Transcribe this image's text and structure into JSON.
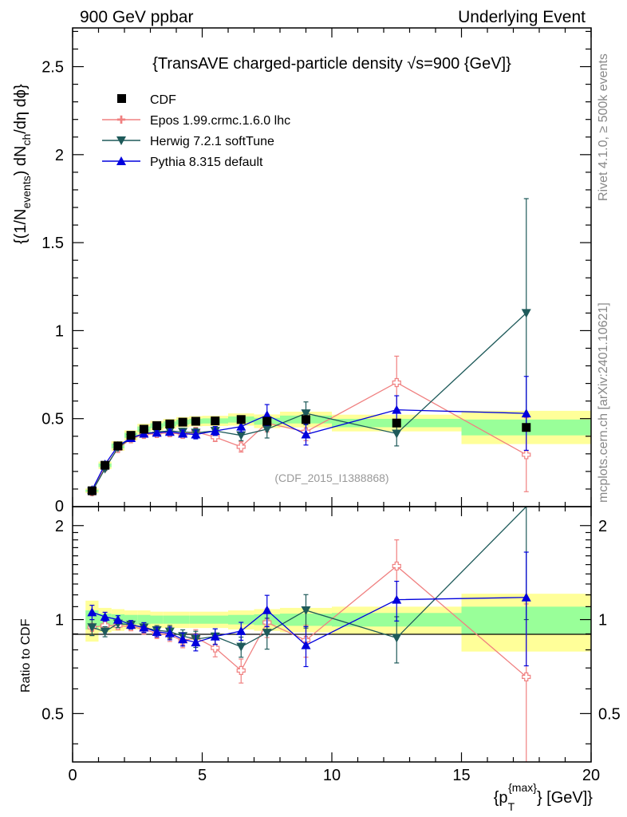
{
  "header": {
    "left": "900 GeV ppbar",
    "right": "Underlying Event"
  },
  "side": {
    "rivet": "Rivet 4.1.0, ≥ 500k events",
    "mcplots": "mcplots.cern.ch [arXiv:2401.10621]"
  },
  "chart_data": {
    "type": "scatter",
    "title": "{TransAVE charged-particle density √s=900 {GeV]}",
    "analysis_label": "(CDF_2015_I1388868)",
    "xlabel": "{p_T^{max}} [GeV]}",
    "xlabel_main": "{p",
    "xlabel_sub": "T",
    "xlabel_sup": "{max}",
    "xlabel_tail": "} [GeV]}",
    "ylabel": "{(1/N_events) dN_ch/dη dϕ}",
    "ylabel_a": "{(1/N",
    "ylabel_sub1": "events",
    "ylabel_b": ") dN",
    "ylabel_sub2": "ch",
    "ylabel_c": "/dη  dϕ}",
    "ratio_ylabel": "Ratio to CDF",
    "xlim": [
      0,
      20
    ],
    "ylim": [
      0,
      2.72
    ],
    "ratio_ylim": [
      0.35,
      2.3
    ],
    "xticks": [
      "0",
      "5",
      "10",
      "15",
      "20"
    ],
    "yticks": [
      "0.5",
      "1",
      "1.5",
      "2",
      "2.5"
    ],
    "ratio_yticks": [
      "0.5",
      "1",
      "2"
    ],
    "legend": [
      "CDF",
      "Epos 1.99.crmc.1.6.0 lhc",
      "Herwig 7.2.1 softTune",
      "Pythia 8.315 default"
    ],
    "x": [
      0.75,
      1.25,
      1.75,
      2.25,
      2.75,
      3.25,
      3.75,
      4.25,
      4.75,
      5.5,
      6.5,
      7.5,
      9.0,
      12.5,
      17.5
    ],
    "bin_edges": [
      0.5,
      1.0,
      1.5,
      2.0,
      2.5,
      3.0,
      3.5,
      4.0,
      4.5,
      5.0,
      6.0,
      7.0,
      8.0,
      10.0,
      15.0,
      20.0
    ],
    "data": {
      "name": "CDF",
      "values": [
        0.09,
        0.235,
        0.345,
        0.405,
        0.44,
        0.46,
        0.47,
        0.48,
        0.485,
        0.487,
        0.495,
        0.485,
        0.495,
        0.475,
        0.45
      ]
    },
    "band_inner": [
      0.07,
      0.045,
      0.04,
      0.035,
      0.035,
      0.03,
      0.03,
      0.03,
      0.03,
      0.03,
      0.035,
      0.04,
      0.045,
      0.05,
      0.1
    ],
    "band_outer": [
      0.15,
      0.09,
      0.08,
      0.07,
      0.07,
      0.06,
      0.06,
      0.06,
      0.06,
      0.06,
      0.07,
      0.08,
      0.09,
      0.1,
      0.21
    ],
    "series": [
      {
        "name": "Epos 1.99.crmc.1.6.0 lhc",
        "color": "#f08080",
        "marker": "open-cross",
        "values": [
          0.085,
          0.225,
          0.33,
          0.385,
          0.41,
          0.415,
          0.42,
          0.41,
          0.425,
          0.395,
          0.34,
          0.475,
          0.425,
          0.705,
          0.295
        ],
        "errors": [
          0.005,
          0.008,
          0.01,
          0.012,
          0.015,
          0.015,
          0.02,
          0.02,
          0.025,
          0.025,
          0.03,
          0.05,
          0.05,
          0.15,
          0.21
        ]
      },
      {
        "name": "Herwig 7.2.1 softTune",
        "color": "#1e5a5a",
        "marker": "triangle-down",
        "values": [
          0.085,
          0.215,
          0.335,
          0.39,
          0.415,
          0.425,
          0.43,
          0.425,
          0.42,
          0.43,
          0.405,
          0.44,
          0.53,
          0.415,
          1.1
        ],
        "errors": [
          0.005,
          0.008,
          0.01,
          0.012,
          0.015,
          0.015,
          0.02,
          0.02,
          0.025,
          0.025,
          0.03,
          0.05,
          0.065,
          0.07,
          0.65
        ]
      },
      {
        "name": "Pythia 8.315 default",
        "color": "#0000dd",
        "marker": "triangle-up",
        "values": [
          0.095,
          0.24,
          0.345,
          0.39,
          0.415,
          0.42,
          0.425,
          0.415,
          0.41,
          0.43,
          0.455,
          0.52,
          0.41,
          0.55,
          0.53
        ],
        "errors": [
          0.005,
          0.008,
          0.01,
          0.012,
          0.015,
          0.015,
          0.02,
          0.02,
          0.025,
          0.025,
          0.03,
          0.06,
          0.06,
          0.08,
          0.21
        ]
      }
    ]
  }
}
